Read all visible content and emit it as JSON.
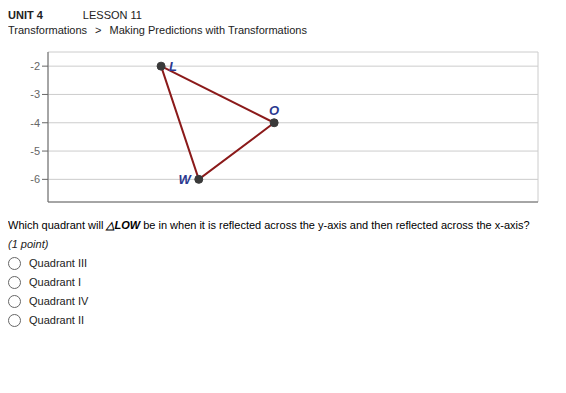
{
  "chart_data": {
    "type": "line",
    "title": "UNIT 4",
    "subtitle": "LESSON 11",
    "x": [
      -5,
      -2,
      -4,
      -5
    ],
    "series": [
      {
        "type": "line",
        "color": "#8B1A1A",
        "values": [
          -2,
          -4,
          -6,
          -2
        ]
      },
      {
        "type": "scatter",
        "color": "#3a3a3a",
        "marker": "circle",
        "values": [
          -2,
          -4,
          -6,
          null
        ]
      }
    ],
    "xlim": [
      -8,
      5
    ],
    "xticks": [
      -8,
      -7,
      -6,
      -5,
      -4,
      -3,
      -2,
      -1,
      0,
      1,
      2,
      3,
      4,
      5
    ],
    "ylim": [
      -6.8,
      -1.5
    ],
    "yticks": [
      -2,
      -3,
      -4,
      -5,
      -6
    ],
    "grid": true,
    "tick_labels": "y",
    "annotations": [
      {
        "text": "Transformations"
      },
      {
        "text": ">"
      },
      {
        "text": "Making Predictions with Transformations"
      },
      {
        "text": "Which quadrant will "
      },
      {
        "text": "△LOW"
      },
      {
        "text": " be in when it is reflected across the y-axis and then reflected across the x-axis?"
      },
      {
        "text": "(1 point)"
      },
      {
        "text": "Quadrant III"
      },
      {
        "text": "Quadrant I"
      },
      {
        "text": "Quadrant IV"
      },
      {
        "text": "Quadrant II"
      },
      {
        "text": "L",
        "x": -5,
        "y": -2,
        "color": "#2B3990"
      },
      {
        "text": "O",
        "x": -2,
        "y": -4,
        "color": "#2B3990"
      },
      {
        "text": "W",
        "x": -4,
        "y": -6,
        "color": "#2B3990"
      }
    ]
  }
}
